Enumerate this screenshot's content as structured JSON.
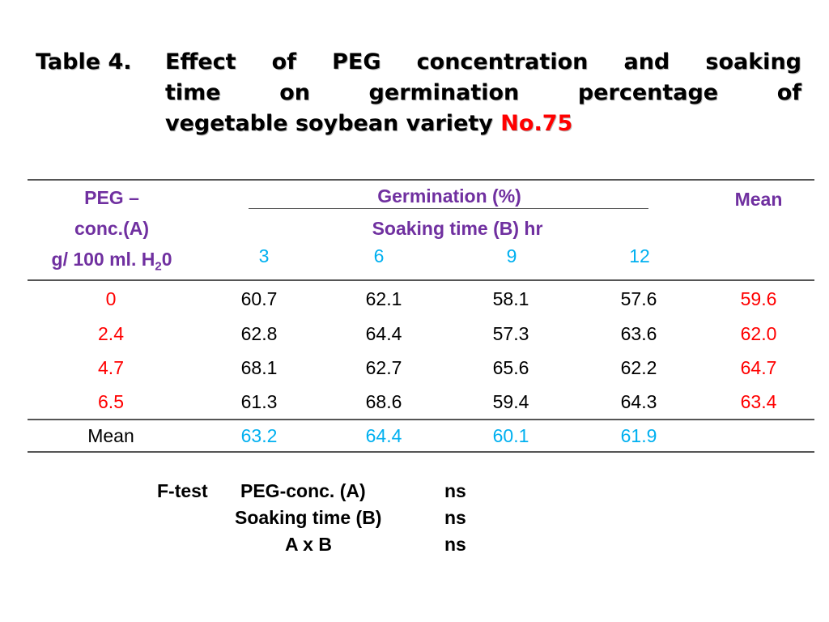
{
  "title": {
    "label": "Table 4.",
    "line1": "Effect of PEG concentration and soaking",
    "line2": "time on germination percentage of",
    "line3": "vegetable soybean variety",
    "highlight": "No.75"
  },
  "table": {
    "header": {
      "col1": [
        "PEG –",
        "conc.(A)",
        "g/ 100 ml. H",
        "2",
        "0"
      ],
      "group_title": "Germination (%)",
      "group_subtitle": "Soaking time (B) hr",
      "soak_times": [
        "3",
        "6",
        "9",
        "12"
      ],
      "mean_label": "Mean"
    },
    "rows": [
      {
        "conc": "0",
        "values": [
          "60.7",
          "62.1",
          "58.1",
          "57.6"
        ],
        "mean": "59.6"
      },
      {
        "conc": "2.4",
        "values": [
          "62.8",
          "64.4",
          "57.3",
          "63.6"
        ],
        "mean": "62.0"
      },
      {
        "conc": "4.7",
        "values": [
          "68.1",
          "62.7",
          "65.6",
          "62.2"
        ],
        "mean": "64.7"
      },
      {
        "conc": "6.5",
        "values": [
          "61.3",
          "68.6",
          "59.4",
          "64.3"
        ],
        "mean": "63.4"
      }
    ],
    "mean_row": {
      "label": "Mean",
      "values": [
        "63.2",
        "64.4",
        "60.1",
        "61.9"
      ]
    }
  },
  "ftest": {
    "label": "F-test",
    "rows": [
      {
        "factor": "PEG-conc. (A)",
        "result": "ns"
      },
      {
        "factor": "Soaking time (B)",
        "result": "ns"
      },
      {
        "factor": "A x B",
        "result": "ns"
      }
    ]
  },
  "colors": {
    "header": "#7030a0",
    "concentration": "#ff0000",
    "soak_time": "#00b0f0",
    "highlight": "#ff0000"
  }
}
